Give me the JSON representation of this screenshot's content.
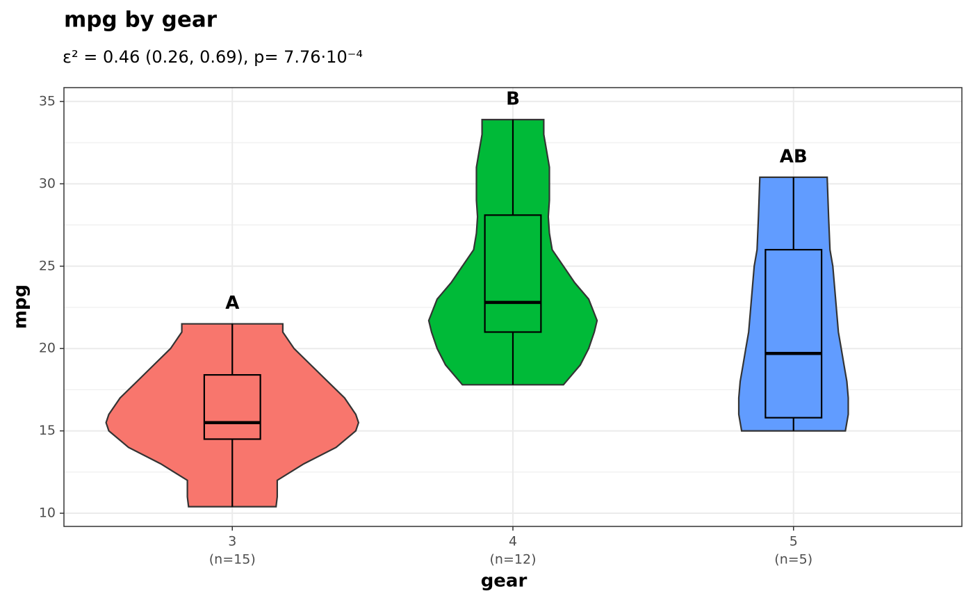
{
  "chart_data": {
    "type": "violin",
    "title": "mpg by gear",
    "subtitle": "ε² = 0.46 (0.26, 0.69), p= 7.76·10⁻⁴",
    "x_label": "gear",
    "y_label": "mpg",
    "categories": [
      "3",
      "4",
      "5"
    ],
    "count_labels": [
      "(n=15)",
      "(n=12)",
      "(n=5)"
    ],
    "letters": [
      "A",
      "B",
      "AB"
    ],
    "groups": [
      {
        "color": "#F8766D",
        "min": 10.4,
        "q1": 14.5,
        "median": 15.5,
        "q3": 18.4,
        "max": 21.5,
        "density_y": [
          10.4,
          11,
          12,
          13,
          14,
          15,
          15.5,
          16,
          17,
          18,
          19,
          20,
          21,
          21.5
        ],
        "density_width": [
          0.156,
          0.16,
          0.16,
          0.255,
          0.37,
          0.44,
          0.45,
          0.44,
          0.4,
          0.34,
          0.28,
          0.22,
          0.18,
          0.18
        ]
      },
      {
        "color": "#00BA38",
        "min": 17.8,
        "q1": 21.0,
        "median": 22.8,
        "q3": 28.1,
        "max": 33.9,
        "density_y": [
          17.8,
          19,
          20,
          21,
          21.7,
          23,
          24,
          25,
          26,
          27,
          28,
          29,
          30,
          31,
          32,
          33,
          33.9
        ],
        "density_width": [
          0.18,
          0.24,
          0.27,
          0.29,
          0.3,
          0.27,
          0.22,
          0.18,
          0.14,
          0.13,
          0.126,
          0.13,
          0.13,
          0.13,
          0.12,
          0.11,
          0.11
        ]
      },
      {
        "color": "#619CFF",
        "min": 15.0,
        "q1": 15.8,
        "median": 19.7,
        "q3": 26.0,
        "max": 30.4,
        "density_y": [
          15,
          16,
          17,
          18,
          19,
          20,
          21,
          22,
          23,
          24,
          25,
          26,
          28,
          30.4
        ],
        "density_width": [
          0.185,
          0.195,
          0.195,
          0.19,
          0.18,
          0.17,
          0.16,
          0.155,
          0.15,
          0.145,
          0.14,
          0.13,
          0.125,
          0.12
        ]
      }
    ],
    "ylim": [
      9.2,
      35.84
    ],
    "yticks": [
      10,
      15,
      20,
      25,
      30,
      35
    ],
    "y_minor_gridlines": [
      12.5,
      17.5,
      22.5,
      27.5,
      32.5
    ],
    "grid": true
  }
}
